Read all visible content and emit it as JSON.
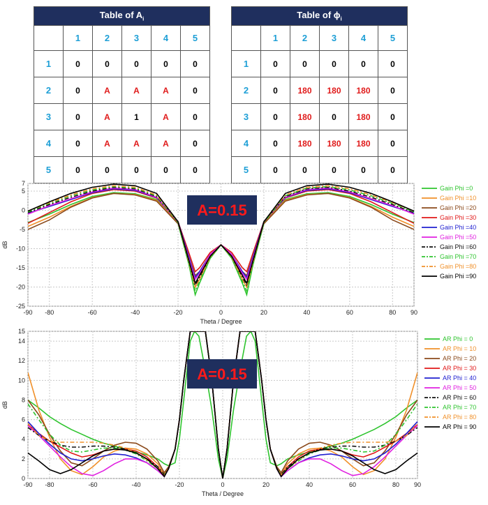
{
  "tableA": {
    "title": "Table of A",
    "title_sub": "i",
    "col_headers": [
      "1",
      "2",
      "3",
      "4",
      "5"
    ],
    "row_headers": [
      "1",
      "2",
      "3",
      "4",
      "5"
    ],
    "cells": [
      [
        "0",
        "0",
        "0",
        "0",
        "0"
      ],
      [
        "0",
        "A",
        "A",
        "A",
        "0"
      ],
      [
        "0",
        "A",
        "1",
        "A",
        "0"
      ],
      [
        "0",
        "A",
        "A",
        "A",
        "0"
      ],
      [
        "0",
        "0",
        "0",
        "0",
        "0"
      ]
    ]
  },
  "tablePhi": {
    "title": "Table of ϕ",
    "title_sub": "i",
    "col_headers": [
      "1",
      "2",
      "3",
      "4",
      "5"
    ],
    "row_headers": [
      "1",
      "2",
      "3",
      "4",
      "5"
    ],
    "cells": [
      [
        "0",
        "0",
        "0",
        "0",
        "0"
      ],
      [
        "0",
        "180",
        "180",
        "180",
        "0"
      ],
      [
        "0",
        "180",
        "0",
        "180",
        "0"
      ],
      [
        "0",
        "180",
        "180",
        "180",
        "0"
      ],
      [
        "0",
        "0",
        "0",
        "0",
        "0"
      ]
    ]
  },
  "colors": {
    "table_header_bg": "#1f2f5e",
    "header_text": "#1e9fd6",
    "highlight_text": "#e01b1b",
    "badge_bg": "#1f2f5e",
    "badge_text": "#ff1a1a"
  },
  "chart_data": [
    {
      "type": "line",
      "badge": "A=0.15",
      "xlabel": "Theta / Degree",
      "ylabel": "dB",
      "xlim": [
        -90,
        90
      ],
      "ylim": [
        -25,
        7
      ],
      "xticks": [
        "-90",
        "-80",
        "-60",
        "-40",
        "-20",
        "0",
        "20",
        "40",
        "60",
        "80",
        "90"
      ],
      "yticks": [
        "7",
        "5",
        "0",
        "-5",
        "-10",
        "-15",
        "-20",
        "-25"
      ],
      "grid": true,
      "legend_position": "right",
      "x": [
        -90,
        -80,
        -70,
        -60,
        -50,
        -40,
        -30,
        -20,
        -15,
        -12,
        -10,
        -5,
        0,
        5,
        10,
        12,
        15,
        20,
        30,
        40,
        50,
        60,
        70,
        80,
        90
      ],
      "series": [
        {
          "name": "Gain Phi =0",
          "color": "#2ec42e",
          "dash": "solid",
          "values": [
            -3.2,
            -1.0,
            1.5,
            3.6,
            4.6,
            4.3,
            2.8,
            -3.5,
            -14,
            -22,
            -19,
            -12.5,
            -9,
            -12.5,
            -19,
            -22,
            -14,
            -3.5,
            2.8,
            4.3,
            4.6,
            3.6,
            1.5,
            -1.0,
            -3.2
          ]
        },
        {
          "name": "Gain Phi =10",
          "color": "#f0902a",
          "dash": "solid",
          "values": [
            -4.2,
            -1.8,
            1.0,
            3.3,
            4.4,
            4.1,
            2.6,
            -3.3,
            -13,
            -20,
            -18,
            -12,
            -9,
            -12,
            -18,
            -20,
            -13,
            -3.3,
            2.6,
            4.1,
            4.4,
            3.3,
            1.0,
            -1.8,
            -4.2
          ]
        },
        {
          "name": "Gain Phi =20",
          "color": "#8b4a1c",
          "dash": "solid",
          "values": [
            -5.0,
            -2.5,
            0.8,
            3.2,
            4.4,
            4.0,
            2.4,
            -3.5,
            -12,
            -17,
            -16,
            -11.5,
            -9,
            -11.5,
            -16,
            -17,
            -12,
            -3.5,
            2.4,
            4.0,
            4.4,
            3.2,
            0.8,
            -2.5,
            -5.0
          ]
        },
        {
          "name": "Gain Phi =30",
          "color": "#e01818",
          "dash": "solid",
          "values": [
            -3.4,
            -0.6,
            2.2,
            4.4,
            5.4,
            5.0,
            3.2,
            -3.0,
            -11,
            -16,
            -15,
            -11,
            -9,
            -11,
            -15,
            -16,
            -11,
            -3.0,
            3.2,
            5.0,
            5.4,
            4.4,
            2.2,
            -0.6,
            -3.4
          ]
        },
        {
          "name": "Gain Phi =40",
          "color": "#2020d0",
          "dash": "solid",
          "values": [
            -0.8,
            1.0,
            2.8,
            4.6,
            5.6,
            5.2,
            3.3,
            -3.0,
            -12,
            -17.5,
            -16,
            -11.5,
            -9,
            -11.5,
            -16,
            -17.5,
            -12,
            -3.0,
            3.3,
            5.2,
            5.6,
            4.6,
            2.8,
            1.0,
            -0.8
          ]
        },
        {
          "name": "Gain Phi =50",
          "color": "#e020e0",
          "dash": "solid",
          "values": [
            -1.0,
            1.2,
            3.0,
            4.8,
            5.8,
            5.4,
            3.4,
            -3.0,
            -12.5,
            -18,
            -16.5,
            -11.5,
            -9,
            -11.5,
            -16.5,
            -18,
            -12.5,
            -3.0,
            3.4,
            5.4,
            5.8,
            4.8,
            3.0,
            1.2,
            -1.0
          ]
        },
        {
          "name": "Gain Phi =60",
          "color": "#111111",
          "dash": "6,3,2,3",
          "values": [
            -0.6,
            1.5,
            3.4,
            5.0,
            6.0,
            5.6,
            3.6,
            -3.0,
            -13,
            -19.5,
            -17.5,
            -12,
            -9,
            -12,
            -17.5,
            -19.5,
            -13,
            -3.0,
            3.6,
            5.6,
            6.0,
            5.0,
            3.4,
            1.5,
            -0.6
          ]
        },
        {
          "name": "Gain Phi =70",
          "color": "#2ec42e",
          "dash": "6,3,2,3",
          "values": [
            -0.4,
            1.8,
            3.8,
            5.3,
            6.2,
            5.8,
            3.8,
            -3.2,
            -14,
            -21,
            -18.5,
            -12.5,
            -9,
            -12.5,
            -18.5,
            -21,
            -14,
            -3.2,
            3.8,
            5.8,
            6.2,
            5.3,
            3.8,
            1.8,
            -0.4
          ]
        },
        {
          "name": "Gain Phi =80",
          "color": "#f0902a",
          "dash": "6,3,2,3",
          "values": [
            -0.2,
            2.0,
            4.0,
            5.6,
            6.4,
            6.0,
            4.0,
            -3.0,
            -13.5,
            -20,
            -18,
            -12.2,
            -9,
            -12.2,
            -18,
            -20,
            -13.5,
            -3.0,
            4.0,
            6.0,
            6.4,
            5.6,
            4.0,
            2.0,
            -0.2
          ]
        },
        {
          "name": "Gain Phi =90",
          "color": "#000000",
          "dash": "solid",
          "values": [
            -0.2,
            2.2,
            4.4,
            6.0,
            6.8,
            6.4,
            4.4,
            -3.0,
            -13,
            -19,
            -17,
            -12,
            -9,
            -12,
            -17,
            -19,
            -13,
            -3.0,
            4.4,
            6.4,
            6.8,
            6.0,
            4.4,
            2.2,
            -0.2
          ]
        }
      ]
    },
    {
      "type": "line",
      "badge": "A=0.15",
      "xlabel": "Theta / Degree",
      "ylabel": "dB",
      "xlim": [
        -90,
        90
      ],
      "ylim": [
        0,
        15
      ],
      "xticks": [
        "-90",
        "-80",
        "-60",
        "-40",
        "-20",
        "0",
        "20",
        "40",
        "60",
        "80",
        "90"
      ],
      "yticks": [
        "15",
        "14",
        "12",
        "10",
        "8",
        "6",
        "4",
        "2",
        "0"
      ],
      "grid": true,
      "legend_position": "right",
      "x": [
        -90,
        -85,
        -80,
        -75,
        -70,
        -65,
        -60,
        -55,
        -50,
        -45,
        -40,
        -35,
        -30,
        -27,
        -25,
        -22,
        -20,
        -18,
        -15,
        -13,
        -11,
        -8,
        -5,
        -2,
        0,
        2,
        5,
        8,
        11,
        13,
        15,
        18,
        20,
        22,
        25,
        27,
        30,
        35,
        40,
        45,
        50,
        55,
        60,
        65,
        70,
        75,
        80,
        85,
        90
      ],
      "series": [
        {
          "name": "AR Phi = 0",
          "color": "#2ec42e",
          "dash": "solid",
          "values": [
            8.0,
            7.2,
            6.3,
            5.6,
            5.0,
            4.5,
            4.0,
            3.6,
            3.3,
            3.0,
            2.7,
            2.4,
            2.0,
            1.5,
            1.3,
            1.6,
            4.0,
            8.0,
            14.0,
            15,
            14.5,
            11.0,
            7.0,
            2.0,
            0.0,
            2.0,
            7.0,
            11.0,
            14.5,
            15,
            14.0,
            8.0,
            4.0,
            1.6,
            1.3,
            1.5,
            2.0,
            2.4,
            2.7,
            3.0,
            3.3,
            3.6,
            4.0,
            4.5,
            5.0,
            5.6,
            6.3,
            7.2,
            8.0
          ]
        },
        {
          "name": "AR Phi = 10",
          "color": "#f0902a",
          "dash": "solid",
          "values": [
            10.8,
            7.0,
            4.2,
            2.0,
            0.8,
            0.4,
            1.2,
            2.2,
            2.8,
            3.1,
            3.0,
            2.5,
            1.5,
            0.4,
            1.0,
            3.0,
            6.0,
            10.0,
            15,
            15,
            15,
            15,
            10.0,
            3.0,
            0.0,
            3.0,
            10.0,
            15,
            15,
            15,
            15,
            10.0,
            6.0,
            3.0,
            1.0,
            0.4,
            1.5,
            2.5,
            3.0,
            3.1,
            2.8,
            2.2,
            1.2,
            0.4,
            0.8,
            2.0,
            4.2,
            7.0,
            10.8
          ]
        },
        {
          "name": "AR Phi = 20",
          "color": "#8b4a1c",
          "dash": "solid",
          "values": [
            8.0,
            6.5,
            4.5,
            2.8,
            1.6,
            1.3,
            2.0,
            2.8,
            3.4,
            3.7,
            3.6,
            3.0,
            1.8,
            0.6,
            1.2,
            3.0,
            6.0,
            10.0,
            15,
            15,
            15,
            15,
            10.0,
            3.0,
            0.0,
            3.0,
            10.0,
            15,
            15,
            15,
            15,
            10.0,
            6.0,
            3.0,
            1.2,
            0.6,
            1.8,
            3.0,
            3.6,
            3.7,
            3.4,
            2.8,
            2.0,
            1.3,
            1.6,
            2.8,
            4.5,
            6.5,
            8.0
          ]
        },
        {
          "name": "AR Phi = 30",
          "color": "#e01818",
          "dash": "solid",
          "values": [
            5.5,
            4.6,
            3.8,
            3.2,
            2.6,
            2.2,
            2.4,
            2.8,
            3.0,
            3.0,
            2.8,
            2.2,
            1.2,
            0.2,
            1.0,
            3.0,
            6.0,
            10.0,
            15,
            15,
            15,
            15,
            10.0,
            3.0,
            0.0,
            3.0,
            10.0,
            15,
            15,
            15,
            15,
            10.0,
            6.0,
            3.0,
            1.0,
            0.2,
            1.2,
            2.2,
            2.8,
            3.0,
            3.0,
            2.8,
            2.4,
            2.2,
            2.6,
            3.2,
            3.8,
            4.6,
            5.5
          ]
        },
        {
          "name": "AR Phi = 40",
          "color": "#2020d0",
          "dash": "solid",
          "values": [
            5.8,
            4.6,
            3.5,
            2.6,
            2.0,
            1.8,
            2.0,
            2.3,
            2.5,
            2.4,
            2.1,
            1.6,
            0.8,
            0.2,
            1.0,
            3.0,
            6.0,
            10.0,
            15,
            15,
            15,
            15,
            10.0,
            3.0,
            0.0,
            3.0,
            10.0,
            15,
            15,
            15,
            15,
            10.0,
            6.0,
            3.0,
            1.0,
            0.2,
            0.8,
            1.6,
            2.1,
            2.4,
            2.5,
            2.3,
            2.0,
            1.8,
            2.0,
            2.6,
            3.5,
            4.6,
            5.8
          ]
        },
        {
          "name": "AR Phi = 50",
          "color": "#e020e0",
          "dash": "solid",
          "values": [
            5.4,
            4.4,
            3.3,
            2.2,
            1.2,
            0.5,
            0.3,
            0.8,
            1.5,
            2.0,
            2.0,
            1.6,
            0.8,
            0.2,
            1.0,
            3.0,
            6.0,
            10.0,
            15,
            15,
            15,
            15,
            10.0,
            3.0,
            0.0,
            3.0,
            10.0,
            15,
            15,
            15,
            15,
            10.0,
            6.0,
            3.0,
            1.0,
            0.2,
            0.8,
            1.6,
            2.0,
            2.0,
            1.5,
            0.8,
            0.3,
            0.5,
            1.2,
            2.2,
            3.3,
            4.4,
            5.4
          ]
        },
        {
          "name": "AR Phi = 60",
          "color": "#111111",
          "dash": "6,3,2,3",
          "values": [
            5.2,
            4.4,
            3.8,
            3.4,
            3.2,
            3.2,
            3.3,
            3.3,
            3.2,
            3.0,
            2.6,
            2.0,
            1.2,
            0.4,
            1.0,
            3.0,
            6.0,
            10.0,
            15,
            15,
            15,
            15,
            10.0,
            3.0,
            0.0,
            3.0,
            10.0,
            15,
            15,
            15,
            15,
            10.0,
            6.0,
            3.0,
            1.0,
            0.4,
            1.2,
            2.0,
            2.6,
            3.0,
            3.2,
            3.3,
            3.3,
            3.2,
            3.2,
            3.4,
            3.8,
            4.4,
            5.2
          ]
        },
        {
          "name": "AR Phi = 70",
          "color": "#2ec42e",
          "dash": "6,3,2,3",
          "values": [
            7.6,
            6.0,
            4.5,
            3.4,
            2.8,
            2.7,
            2.9,
            3.1,
            3.1,
            2.9,
            2.5,
            1.8,
            1.0,
            0.3,
            1.0,
            3.0,
            6.0,
            10.0,
            15,
            15,
            15,
            15,
            10.0,
            3.0,
            0.0,
            3.0,
            10.0,
            15,
            15,
            15,
            15,
            10.0,
            6.0,
            3.0,
            1.0,
            0.3,
            1.0,
            1.8,
            2.5,
            2.9,
            3.1,
            3.1,
            2.9,
            2.7,
            2.8,
            3.4,
            4.5,
            6.0,
            7.6
          ]
        },
        {
          "name": "AR Phi = 80",
          "color": "#f0902a",
          "dash": "6,3,2,3",
          "values": [
            5.6,
            4.4,
            3.8,
            3.7,
            3.7,
            3.7,
            3.7,
            3.6,
            3.4,
            3.1,
            2.6,
            1.9,
            1.0,
            0.3,
            1.0,
            3.0,
            6.0,
            10.0,
            15,
            15,
            15,
            15,
            10.0,
            3.0,
            0.0,
            3.0,
            10.0,
            15,
            15,
            15,
            15,
            10.0,
            6.0,
            3.0,
            1.0,
            0.3,
            1.0,
            1.9,
            2.6,
            3.1,
            3.4,
            3.6,
            3.7,
            3.7,
            3.7,
            3.7,
            3.8,
            4.4,
            5.6
          ]
        },
        {
          "name": "AR Phi = 90",
          "color": "#000000",
          "dash": "solid",
          "values": [
            2.6,
            1.8,
            0.9,
            0.5,
            0.9,
            1.6,
            2.3,
            2.8,
            3.0,
            2.9,
            2.6,
            2.0,
            1.0,
            0.2,
            1.0,
            3.0,
            6.0,
            10.0,
            15,
            15,
            15,
            15,
            10.0,
            3.0,
            0.0,
            3.0,
            10.0,
            15,
            15,
            15,
            15,
            10.0,
            6.0,
            3.0,
            1.0,
            0.2,
            1.0,
            2.0,
            2.6,
            2.9,
            3.0,
            2.8,
            2.3,
            1.6,
            0.9,
            0.5,
            0.9,
            1.8,
            2.6
          ]
        }
      ]
    }
  ]
}
